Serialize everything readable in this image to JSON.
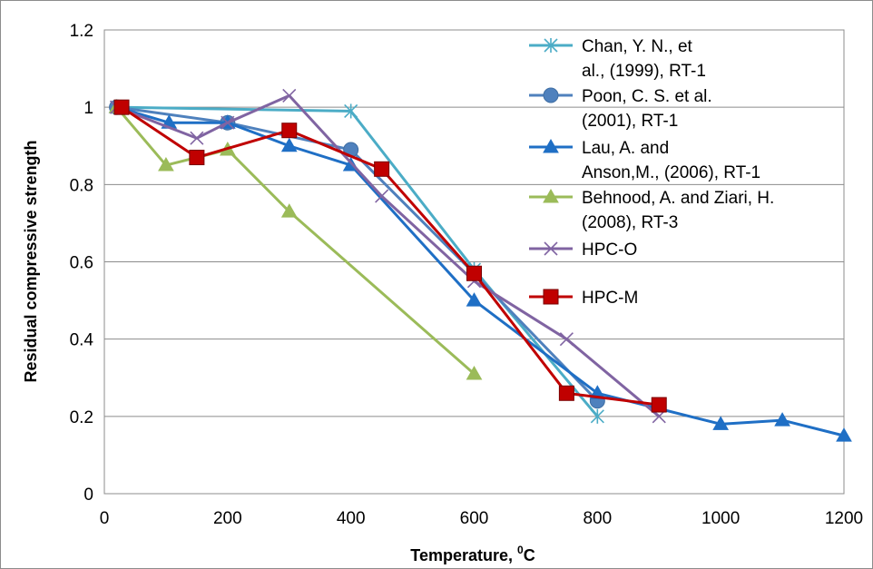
{
  "chart_data": {
    "type": "line",
    "title": "",
    "xlabel": "Temperature, ",
    "xlabel_sup": "0",
    "xlabel_unit": "C",
    "ylabel": "Residual compressive strength",
    "xlim": [
      0,
      1200
    ],
    "ylim": [
      0,
      1.2
    ],
    "xticks": [
      0,
      200,
      400,
      600,
      800,
      1000,
      1200
    ],
    "yticks": [
      0,
      0.2,
      0.4,
      0.6,
      0.8,
      1,
      1.2
    ],
    "ytick_labels": [
      "0",
      "0.2",
      "0.4",
      "0.6",
      "0.8",
      "1",
      "1.2"
    ],
    "grid": "horizontal",
    "legend_position": "top-right",
    "series": [
      {
        "name": "Chan, Y. N., et al., (1999), RT-1",
        "legend_lines": [
          "Chan, Y. N., et",
          "al., (1999), RT-1"
        ],
        "color": "#4BACC6",
        "marker": "asterisk",
        "x": [
          20,
          400,
          600,
          800
        ],
        "y": [
          1.0,
          0.99,
          0.58,
          0.2
        ]
      },
      {
        "name": "Poon, C. S. et al. (2001), RT-1",
        "legend_lines": [
          "Poon, C. S. et al.",
          "(2001), RT-1"
        ],
        "color": "#4F81BD",
        "marker": "circle",
        "x": [
          20,
          200,
          400,
          600,
          800
        ],
        "y": [
          1.0,
          0.96,
          0.89,
          0.57,
          0.24
        ]
      },
      {
        "name": "Lau, A. and Anson,M., (2006), RT-1",
        "legend_lines": [
          "Lau, A. and",
          "Anson,M., (2006), RT-1"
        ],
        "color": "#1F6FC5",
        "marker": "triangle",
        "x": [
          20,
          105,
          200,
          300,
          400,
          600,
          800,
          1000,
          1100,
          1200
        ],
        "y": [
          1.0,
          0.96,
          0.96,
          0.9,
          0.85,
          0.5,
          0.26,
          0.18,
          0.19,
          0.15
        ]
      },
      {
        "name": "Behnood, A. and Ziari, H. (2008), RT-3",
        "legend_lines": [
          "Behnood, A. and Ziari, H.",
          "(2008), RT-3"
        ],
        "color": "#9BBB59",
        "marker": "triangle",
        "x": [
          20,
          100,
          200,
          300,
          600
        ],
        "y": [
          1.0,
          0.85,
          0.89,
          0.73,
          0.31
        ]
      },
      {
        "name": "HPC-O",
        "legend_lines": [
          "HPC-O"
        ],
        "color": "#8064A2",
        "marker": "x",
        "x": [
          20,
          150,
          200,
          300,
          450,
          600,
          750,
          900
        ],
        "y": [
          1.0,
          0.92,
          0.96,
          1.03,
          0.77,
          0.55,
          0.4,
          0.2
        ]
      },
      {
        "name": "HPC-M",
        "legend_lines": [
          "HPC-M"
        ],
        "color": "#C00000",
        "marker": "square",
        "x": [
          28,
          150,
          300,
          450,
          600,
          750,
          900
        ],
        "y": [
          1.0,
          0.87,
          0.94,
          0.84,
          0.57,
          0.26,
          0.23
        ]
      }
    ]
  }
}
